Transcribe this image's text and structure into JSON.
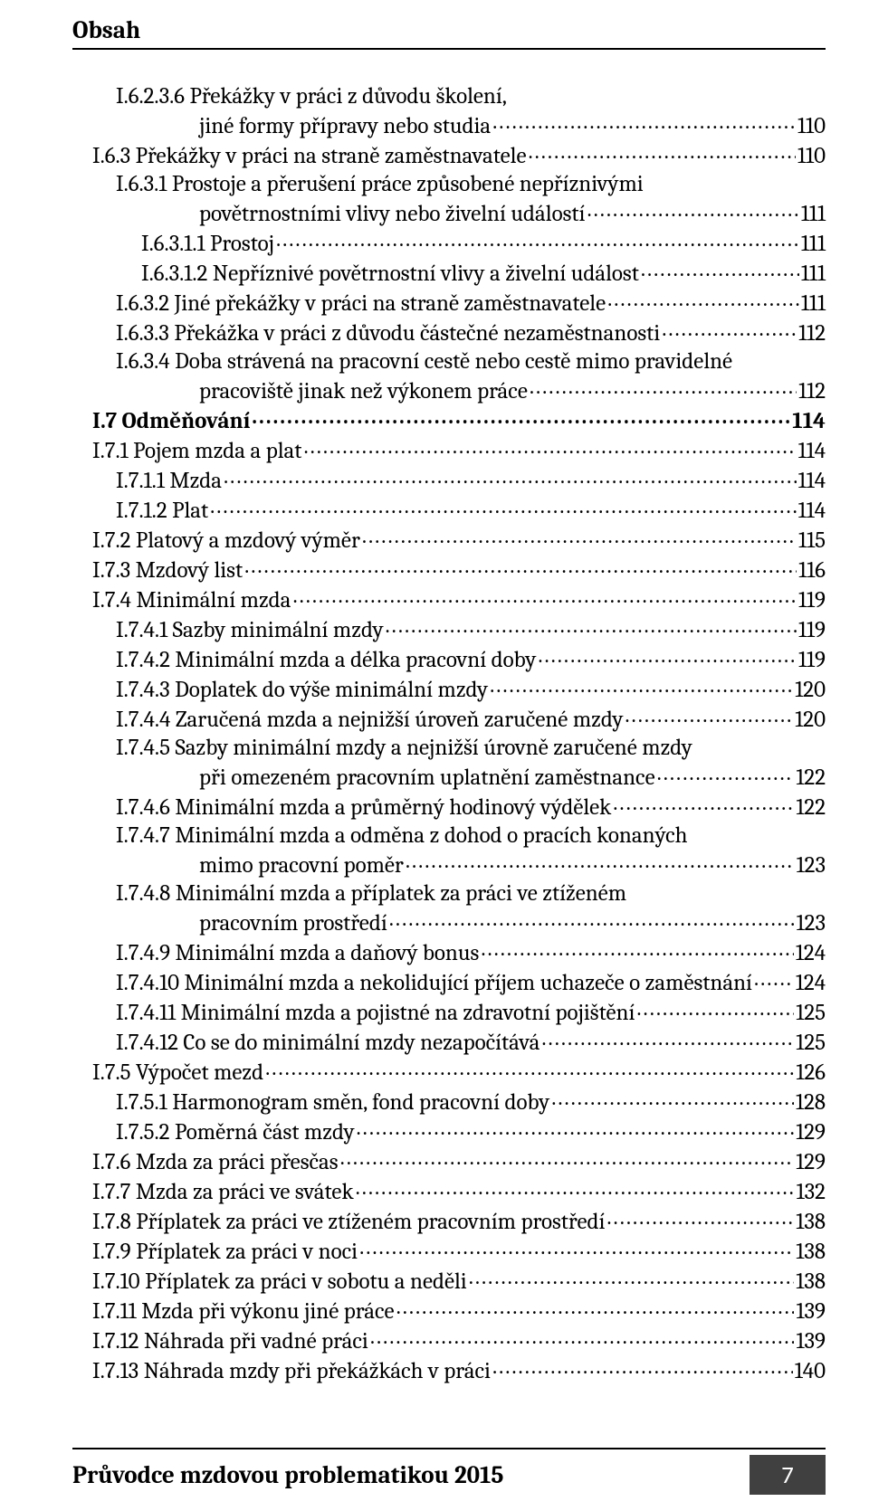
{
  "header": {
    "title": "Obsah"
  },
  "toc": [
    {
      "indent": 1,
      "label": "I.6.2.3.6 Překážky v práci z důvodu školení,"
    },
    {
      "indent": "cont-1",
      "label": "jiné formy přípravy nebo studia",
      "page": "110"
    },
    {
      "indent": 0,
      "label": "I.6.3 Překážky v práci na straně zaměstnavatele",
      "page": "110"
    },
    {
      "indent": 1,
      "label": "I.6.3.1 Prostoje a přerušení práce způsobené nepříznivými"
    },
    {
      "indent": "cont-1",
      "label": "povětrnostními vlivy nebo živelní událostí",
      "page": "111"
    },
    {
      "indent": 2,
      "label": "I.6.3.1.1 Prostoj",
      "page": "111"
    },
    {
      "indent": 2,
      "label": "I.6.3.1.2 Nepříznivé povětrnostní vlivy a živelní událost",
      "page": "111"
    },
    {
      "indent": 1,
      "label": "I.6.3.2 Jiné překážky v práci na straně zaměstnavatele",
      "page": "111"
    },
    {
      "indent": 1,
      "label": "I.6.3.3 Překážka v práci z důvodu částečné nezaměstnanosti",
      "page": "112"
    },
    {
      "indent": 1,
      "label": "I.6.3.4 Doba strávená na pracovní cestě nebo cestě mimo pravidelné"
    },
    {
      "indent": "cont-1",
      "label": "pracoviště jinak než výkonem práce",
      "page": "112"
    },
    {
      "indent": 0,
      "bold": true,
      "label": "I.7 Odměňování",
      "page": "114"
    },
    {
      "indent": 0,
      "label": "I.7.1 Pojem mzda a plat",
      "page": "114"
    },
    {
      "indent": 1,
      "label": "I.7.1.1 Mzda",
      "page": "114"
    },
    {
      "indent": 1,
      "label": "I.7.1.2 Plat",
      "page": "114"
    },
    {
      "indent": 0,
      "label": "I.7.2 Platový a mzdový výměr",
      "page": "115"
    },
    {
      "indent": 0,
      "label": "I.7.3 Mzdový list",
      "page": "116"
    },
    {
      "indent": 0,
      "label": "I.7.4 Minimální mzda",
      "page": "119"
    },
    {
      "indent": 1,
      "label": "I.7.4.1 Sazby minimální mzdy",
      "page": "119"
    },
    {
      "indent": 1,
      "label": "I.7.4.2 Minimální mzda a délka pracovní doby",
      "page": "119"
    },
    {
      "indent": 1,
      "label": "I.7.4.3 Doplatek do výše minimální mzdy",
      "page": "120"
    },
    {
      "indent": 1,
      "label": "I.7.4.4 Zaručená mzda a nejnižší úroveň zaručené mzdy",
      "page": "120"
    },
    {
      "indent": 1,
      "label": "I.7.4.5 Sazby minimální mzdy a nejnižší úrovně zaručené mzdy"
    },
    {
      "indent": "cont-1",
      "label": "při omezeném pracovním uplatnění zaměstnance",
      "page": "122"
    },
    {
      "indent": 1,
      "label": "I.7.4.6 Minimální mzda a průměrný hodinový výdělek",
      "page": "122"
    },
    {
      "indent": 1,
      "label": "I.7.4.7 Minimální mzda a odměna z dohod o pracích konaných"
    },
    {
      "indent": "cont-1",
      "label": "mimo pracovní poměr",
      "page": "123"
    },
    {
      "indent": 1,
      "label": "I.7.4.8 Minimální mzda a příplatek za práci ve ztíženém"
    },
    {
      "indent": "cont-1",
      "label": "pracovním prostředí",
      "page": "123"
    },
    {
      "indent": 1,
      "label": "I.7.4.9 Minimální mzda a daňový bonus",
      "page": "124"
    },
    {
      "indent": 1,
      "label": "I.7.4.10 Minimální mzda a nekolidující příjem uchazeče o zaměstnání",
      "page": "124"
    },
    {
      "indent": 1,
      "label": "I.7.4.11 Minimální mzda a pojistné na zdravotní pojištění",
      "page": "125"
    },
    {
      "indent": 1,
      "label": "I.7.4.12 Co se do minimální mzdy nezapočítává",
      "page": "125"
    },
    {
      "indent": 0,
      "label": "I.7.5 Výpočet mezd",
      "page": "126"
    },
    {
      "indent": 1,
      "label": "I.7.5.1 Harmonogram směn, fond pracovní doby",
      "page": "128"
    },
    {
      "indent": 1,
      "label": "I.7.5.2 Poměrná část mzdy",
      "page": "129"
    },
    {
      "indent": 0,
      "label": "I.7.6 Mzda za práci přesčas",
      "page": "129"
    },
    {
      "indent": 0,
      "label": "I.7.7 Mzda za práci ve svátek",
      "page": "132"
    },
    {
      "indent": 0,
      "label": "I.7.8 Příplatek za práci ve ztíženém pracovním prostředí",
      "page": "138"
    },
    {
      "indent": 0,
      "label": "I.7.9 Příplatek za práci v noci",
      "page": "138"
    },
    {
      "indent": 0,
      "label": "I.7.10 Příplatek za práci v sobotu a neděli",
      "page": "138"
    },
    {
      "indent": 0,
      "label": "I.7.11 Mzda při výkonu jiné práce",
      "page": "139"
    },
    {
      "indent": 0,
      "label": "I.7.12 Náhrada při vadné práci",
      "page": "139"
    },
    {
      "indent": 0,
      "label": "I.7.13 Náhrada mzdy při překážkách v práci",
      "page": "140"
    }
  ],
  "footer": {
    "text": "Průvodce mzdovou problematikou 2015",
    "page_number": "7",
    "box_bg": "#404040",
    "box_fg": "#ffffff"
  }
}
